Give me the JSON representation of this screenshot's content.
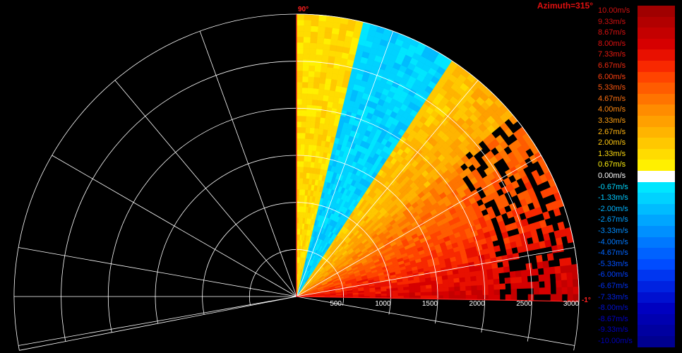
{
  "chart_data": {
    "type": "polar-sector",
    "title": "Azimuth=315°",
    "angle_labels": [
      "90°",
      "-1°"
    ],
    "range_ticks": [
      "500",
      "1000",
      "1500",
      "2000",
      "2500",
      "3000"
    ],
    "range_max": 3000,
    "elevation_min_deg": -1,
    "elevation_max_deg": 90,
    "colorbar": {
      "unit": "m/s",
      "min": -10.0,
      "max": 10.0,
      "entries": [
        {
          "label": "10.00m/s",
          "value": 10.0,
          "color": "#a00000",
          "label_color": "#d01010"
        },
        {
          "label": "9.33m/s",
          "value": 9.33,
          "color": "#b20000",
          "label_color": "#d01010"
        },
        {
          "label": "8.67m/s",
          "value": 8.67,
          "color": "#c40000",
          "label_color": "#d81010"
        },
        {
          "label": "8.00m/s",
          "value": 8.0,
          "color": "#d60000",
          "label_color": "#e01010"
        },
        {
          "label": "7.33m/s",
          "value": 7.33,
          "color": "#e81000",
          "label_color": "#e81a10"
        },
        {
          "label": "6.67m/s",
          "value": 6.67,
          "color": "#f82800",
          "label_color": "#f02a10"
        },
        {
          "label": "6.00m/s",
          "value": 6.0,
          "color": "#ff4400",
          "label_color": "#ff4010"
        },
        {
          "label": "5.33m/s",
          "value": 5.33,
          "color": "#ff5c00",
          "label_color": "#ff5810"
        },
        {
          "label": "4.67m/s",
          "value": 4.67,
          "color": "#ff7400",
          "label_color": "#ff7010"
        },
        {
          "label": "4.00m/s",
          "value": 4.0,
          "color": "#ff8c00",
          "label_color": "#ff8810"
        },
        {
          "label": "3.33m/s",
          "value": 3.33,
          "color": "#ffa000",
          "label_color": "#ffa010"
        },
        {
          "label": "2.67m/s",
          "value": 2.67,
          "color": "#ffb400",
          "label_color": "#ffb410"
        },
        {
          "label": "2.00m/s",
          "value": 2.0,
          "color": "#ffc800",
          "label_color": "#ffc810"
        },
        {
          "label": "1.33m/s",
          "value": 1.33,
          "color": "#ffdc00",
          "label_color": "#ffdc10"
        },
        {
          "label": "0.67m/s",
          "value": 0.67,
          "color": "#fff000",
          "label_color": "#fff010"
        },
        {
          "label": "0.00m/s",
          "value": 0.0,
          "color": "#ffffff",
          "label_color": "#ffffff"
        },
        {
          "label": "-0.67m/s",
          "value": -0.67,
          "color": "#00e6ff",
          "label_color": "#00d8ff"
        },
        {
          "label": "-1.33m/s",
          "value": -1.33,
          "color": "#00d2ff",
          "label_color": "#00c8ff"
        },
        {
          "label": "-2.00m/s",
          "value": -2.0,
          "color": "#00bcff",
          "label_color": "#00b4ff"
        },
        {
          "label": "-2.67m/s",
          "value": -2.67,
          "color": "#00a6ff",
          "label_color": "#00a0ff"
        },
        {
          "label": "-3.33m/s",
          "value": -3.33,
          "color": "#0090ff",
          "label_color": "#008cff"
        },
        {
          "label": "-4.00m/s",
          "value": -4.0,
          "color": "#0078ff",
          "label_color": "#0078ff"
        },
        {
          "label": "-4.67m/s",
          "value": -4.67,
          "color": "#0062ff",
          "label_color": "#0064ff"
        },
        {
          "label": "-5.33m/s",
          "value": -5.33,
          "color": "#004cff",
          "label_color": "#0050ff"
        },
        {
          "label": "-6.00m/s",
          "value": -6.0,
          "color": "#0036f0",
          "label_color": "#0040ff"
        },
        {
          "label": "-6.67m/s",
          "value": -6.67,
          "color": "#0022e0",
          "label_color": "#0030f0"
        },
        {
          "label": "-7.33m/s",
          "value": -7.33,
          "color": "#0010d0",
          "label_color": "#0020e0"
        },
        {
          "label": "-8.00m/s",
          "value": -8.0,
          "color": "#0000c0",
          "label_color": "#0010d0"
        },
        {
          "label": "-8.67m/s",
          "value": -8.67,
          "color": "#0000b0",
          "label_color": "#0000c8"
        },
        {
          "label": "-9.33m/s",
          "value": -9.33,
          "color": "#0000a0",
          "label_color": "#0000c0"
        },
        {
          "label": "-10.00m/s",
          "value": -10.0,
          "color": "#000090",
          "label_color": "#0000b8"
        }
      ]
    },
    "velocity_field": {
      "description_free": true,
      "low_elevation_max": 7.3,
      "mid_elevation": 3.0,
      "negative_band_elev_deg": [
        56,
        76
      ],
      "negative_band_value": -1.3,
      "near_top_value": 1.3
    }
  }
}
